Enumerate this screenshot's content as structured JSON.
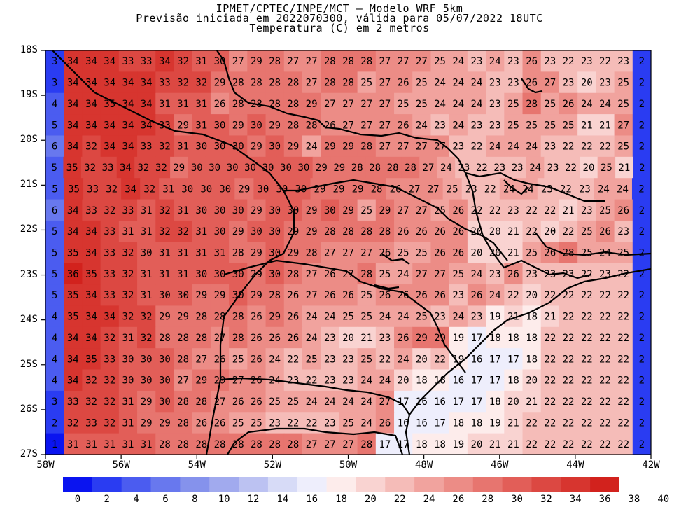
{
  "title": {
    "line1": "IPMET/CPTEC/INPE/MCT – Modelo WRF 5km",
    "line2": "Previsão iniciada em 2022070300, válida para 05/07/2022 18UTC",
    "line3": "Temperatura (C) em 2 metros"
  },
  "lat_labels": [
    "18S",
    "19S",
    "20S",
    "21S",
    "22S",
    "23S",
    "24S",
    "25S",
    "26S",
    "27S"
  ],
  "lon_labels": [
    "58W",
    "56W",
    "54W",
    "52W",
    "50W",
    "48W",
    "46W",
    "44W",
    "42W"
  ],
  "colorbar": {
    "labels": [
      "0",
      "2",
      "4",
      "6",
      "8",
      "10",
      "12",
      "14",
      "16",
      "18",
      "20",
      "22",
      "24",
      "26",
      "28",
      "30",
      "32",
      "34",
      "36",
      "38",
      "40"
    ],
    "colors": [
      "#0a14f0",
      "#2a3cf2",
      "#4b5cf0",
      "#6878ee",
      "#8592ec",
      "#a1aaee",
      "#bcc2f2",
      "#d7dbf7",
      "#eeeefc",
      "#fdeceb",
      "#f9d3d1",
      "#f5bcb8",
      "#f1a39e",
      "#ec8c86",
      "#e7756f",
      "#e25e58",
      "#dc4842",
      "#d7352f",
      "#d2221d"
    ]
  },
  "map_data": {
    "lon_range": [
      -58,
      -42
    ],
    "lat_range": [
      -27,
      -18
    ],
    "rows": [
      "3 34 34 34 33 33 34 32 31 30 27 29 28 27 27 28 28 28 27 27 27 25 24 23 24 23 26 23 22 23 22 23 2",
      "3 34 34 34 34 34 33 32 32 29 28 28 28 28 27 28 28 25 27 26 25 24 24 24 23 23 26 27 23 20 23 25 2",
      "4 34 34 35 34 34 31 31 31 26 28 28 28 28 29 27 27 27 27 25 25 24 24 24 23 25 28 25 26 24 24 25 2",
      "5 34 34 34 34 34 33 29 31 30 29 30 29 28 28 26 27 27 27 26 24 23 24 23 23 25 25 25 25 21 21 27 2",
      "6 34 32 34 34 33 32 31 30 30 30 29 30 29 24 29 29 28 27 27 27 27 23 22 24 24 24 23 22 22 22 25 2",
      "5 35 32 33 34 32 32 29 30 30 30 30 30 30 30 29 29 28 28 28 28 27 24 23 22 23 23 24 23 22 20 25 21 2",
      "5 35 33 32 34 32 31 30 30 30 29 30 30 30 29 29 29 28 26 27 27 25 23 22 24 24 23 22 23 24 24 2",
      "6 34 33 32 33 31 32 31 30 30 30 29 30 30 29 30 29 25 29 27 27 25 26 22 22 23 22 22 21 23 25 26 2",
      "5 34 34 33 31 31 32 32 31 30 29 30 30 29 29 28 28 28 28 26 26 26 26 20 20 21 22 20 22 25 26 23 2",
      "5 35 34 33 32 30 31 31 31 31 28 29 30 29 28 27 27 27 26 25 25 26 26 20 20 21 25 26 28 25 24 25 2",
      "5 36 35 33 32 31 31 31 30 30 30 29 30 28 27 26 27 28 25 24 27 27 25 24 23 26 23 23 23 22 23 22 2",
      "5 35 34 33 32 31 30 30 29 29 30 29 28 26 27 26 26 25 26 26 26 26 23 26 24 22 20 22 22 22 22 22 2",
      "4 35 34 34 32 32 29 29 28 28 28 26 29 26 24 24 25 25 24 24 25 23 24 23 19 21 18 21 22 22 22 22 2",
      "4 34 34 32 31 32 28 28 28 27 28 26 26 26 24 23 20 21 23 26 29 29 19 17 18 18 18 22 22 22 22 22 2",
      "4 34 35 33 30 30 30 28 27 26 25 26 24 22 25 23 23 25 22 24 20 22 19 16 17 17 18 22 22 22 22 22 2",
      "4 34 32 32 30 30 30 27 29 29 27 26 24 23 22 23 23 24 24 20 18 18 16 17 17 18 20 22 22 22 22 22 2",
      "3 33 32 32 31 29 30 28 28 27 26 26 25 25 24 24 24 24 27 17 16 16 17 17 18 20 21 22 22 22 22 22 2",
      "2 32 33 32 31 29 29 28 26 26 25 25 23 22 22 23 25 24 26 16 16 17 18 18 19 21 22 22 22 22 22 22 2",
      "1 31 31 31 31 31 28 28 28 28 28 28 28 28 27 27 27 28 17 17 18 18 19 20 21 21 22 22 22 22 22 22 2"
    ]
  }
}
